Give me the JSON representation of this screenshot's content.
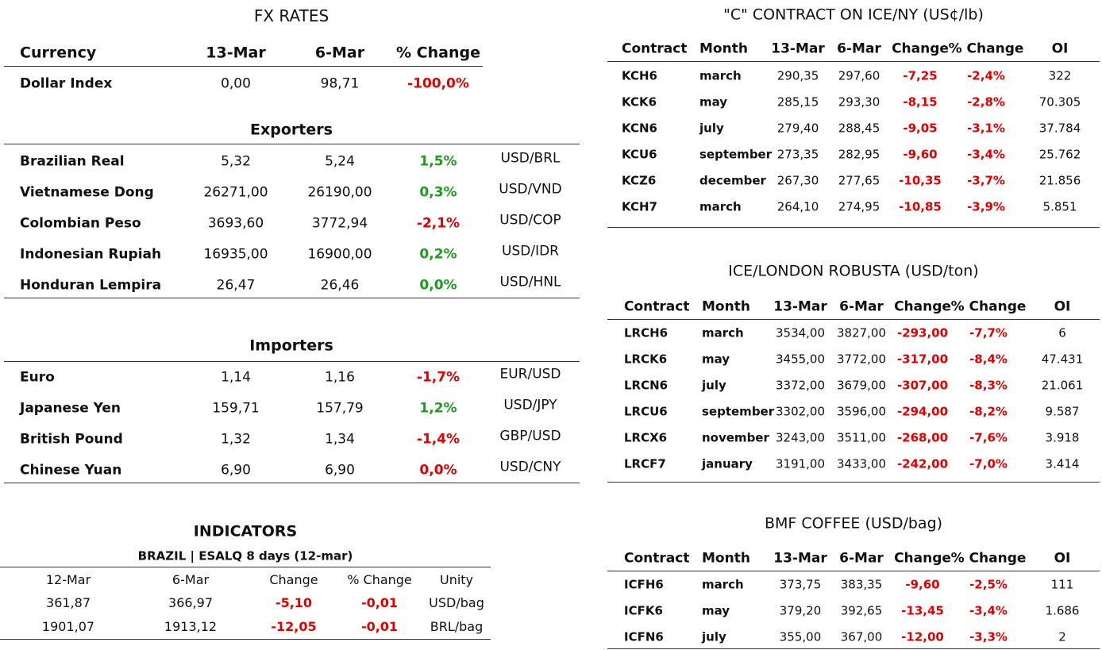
{
  "fx_rates": {
    "title": "FX RATES",
    "header": [
      "Currency",
      "13-Mar",
      "6-Mar",
      "% Change"
    ],
    "rows": [
      [
        "Dollar Index",
        "0,00",
        "98,71",
        "-100,0%"
      ]
    ],
    "change_colors": [
      "#e00000"
    ]
  },
  "exporters": {
    "title": "Exporters",
    "rows": [
      [
        "Brazilian Real",
        "5,32",
        "5,24",
        "1,5%",
        "USD/BRL"
      ],
      [
        "Vietnamese Dong",
        "26271,00",
        "26190,00",
        "0,3%",
        "USD/VND"
      ],
      [
        "Colombian Peso",
        "3693,60",
        "3772,94",
        "-2,1%",
        "USD/COP"
      ],
      [
        "Indonesian Rupiah",
        "16935,00",
        "16900,00",
        "0,2%",
        "USD/IDR"
      ],
      [
        "Honduran Lempira",
        "26,47",
        "26,46",
        "0,0%",
        "USD/HNL"
      ]
    ],
    "change_colors": [
      "#1e9a1e",
      "#1e9a1e",
      "#e00000",
      "#1e9a1e",
      "#1e9a1e"
    ]
  },
  "importers": {
    "title": "Importers",
    "rows": [
      [
        "Euro",
        "1,14",
        "1,16",
        "-1,7%",
        "EUR/USD"
      ],
      [
        "Japanese Yen",
        "159,71",
        "157,79",
        "1,2%",
        "USD/JPY"
      ],
      [
        "British Pound",
        "1,32",
        "1,34",
        "-1,4%",
        "GBP/USD"
      ],
      [
        "Chinese Yuan",
        "6,90",
        "6,90",
        "0,0%",
        "USD/CNY"
      ]
    ],
    "change_colors": [
      "#e00000",
      "#1e9a1e",
      "#e00000",
      "#e00000"
    ]
  },
  "indicators": {
    "title": "INDICATORS",
    "subtitle": "BRAZIL | ESALQ 8 days (12-mar)",
    "header": [
      "12-Mar",
      "6-Mar",
      "Change",
      "% Change",
      "Unity"
    ],
    "rows": [
      [
        "361,87",
        "366,97",
        "-5,10",
        "-0,01",
        "USD/bag"
      ],
      [
        "1901,07",
        "1913,12",
        "-12,05",
        "-0,01",
        "BRL/bag"
      ]
    ],
    "change_colors": [
      "#e00000",
      "#e00000"
    ]
  },
  "ice_ny": {
    "title": "\"C\" CONTRACT ON ICE/NY (US¢/lb)",
    "header": [
      "Contract",
      "Month",
      "13-Mar",
      "6-Mar",
      "Change",
      "% Change",
      "OI"
    ],
    "rows": [
      [
        "KCH6",
        "march",
        "290,35",
        "297,60",
        "-7,25",
        "-2,4%",
        "322"
      ],
      [
        "KCK6",
        "may",
        "285,15",
        "293,30",
        "-8,15",
        "-2,8%",
        "70.305"
      ],
      [
        "KCN6",
        "july",
        "279,40",
        "288,45",
        "-9,05",
        "-3,1%",
        "37.784"
      ],
      [
        "KCU6",
        "september",
        "273,35",
        "282,95",
        "-9,60",
        "-3,4%",
        "25.762"
      ],
      [
        "KCZ6",
        "december",
        "267,30",
        "277,65",
        "-10,35",
        "-3,7%",
        "21.856"
      ],
      [
        "KCH7",
        "march",
        "264,10",
        "274,95",
        "-10,85",
        "-3,9%",
        "5.851"
      ]
    ],
    "change_colors": [
      "#e00000",
      "#e00000",
      "#e00000",
      "#e00000",
      "#e00000",
      "#e00000"
    ]
  },
  "ice_london": {
    "title": "ICE/LONDON ROBUSTA (USD/ton)",
    "header": [
      "Contract",
      "Month",
      "13-Mar",
      "6-Mar",
      "Change",
      "% Change",
      "OI"
    ],
    "rows": [
      [
        "LRCH6",
        "march",
        "3534,00",
        "3827,00",
        "-293,00",
        "-7,7%",
        "6"
      ],
      [
        "LRCK6",
        "may",
        "3455,00",
        "3772,00",
        "-317,00",
        "-8,4%",
        "47.431"
      ],
      [
        "LRCN6",
        "july",
        "3372,00",
        "3679,00",
        "-307,00",
        "-8,3%",
        "21.061"
      ],
      [
        "LRCU6",
        "september",
        "3302,00",
        "3596,00",
        "-294,00",
        "-8,2%",
        "9.587"
      ],
      [
        "LRCX6",
        "november",
        "3243,00",
        "3511,00",
        "-268,00",
        "-7,6%",
        "3.918"
      ],
      [
        "LRCF7",
        "january",
        "3191,00",
        "3433,00",
        "-242,00",
        "-7,0%",
        "3.414"
      ]
    ],
    "change_colors": [
      "#e00000",
      "#e00000",
      "#e00000",
      "#e00000",
      "#e00000",
      "#e00000"
    ]
  },
  "bmf": {
    "title": "BMF COFFEE (USD/bag)",
    "header": [
      "Contract",
      "Month",
      "13-Mar",
      "6-Mar",
      "Change",
      "% Change",
      "OI"
    ],
    "rows": [
      [
        "ICFH6",
        "march",
        "373,75",
        "383,35",
        "-9,60",
        "-2,5%",
        "111"
      ],
      [
        "ICFK6",
        "may",
        "379,20",
        "392,65",
        "-13,45",
        "-3,4%",
        "1.686"
      ],
      [
        "ICFN6",
        "july",
        "355,00",
        "367,00",
        "-12,00",
        "-3,3%",
        "2"
      ]
    ],
    "change_colors": [
      "#e00000",
      "#e00000",
      "#e00000"
    ]
  }
}
